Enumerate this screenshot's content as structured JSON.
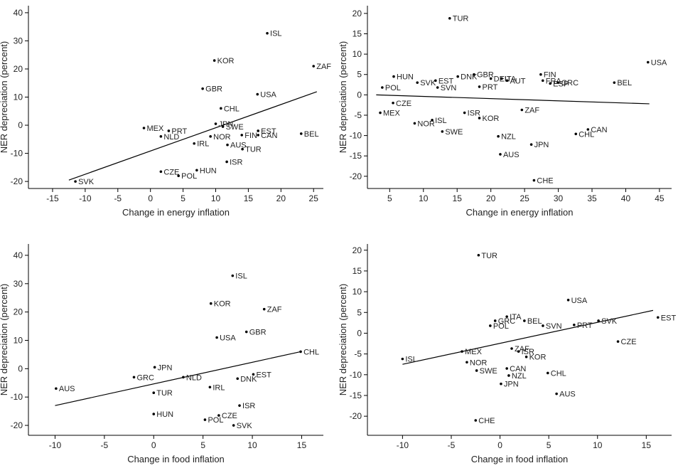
{
  "chart_data": [
    {
      "type": "scatter",
      "xlabel": "Change in energy inflation",
      "ylabel": "NER depreciation (percent)",
      "xlim": [
        -18.7,
        26.5
      ],
      "ylim": [
        -22.5,
        42.5
      ],
      "xticks": [
        -15,
        -10,
        -5,
        0,
        5,
        10,
        15,
        20,
        25
      ],
      "yticks": [
        -20,
        -10,
        0,
        10,
        20,
        30,
        40
      ],
      "labels": [
        "ISL",
        "KOR",
        "ZAF",
        "GBR",
        "USA",
        "CHL",
        "JPN",
        "SWE",
        "MEX",
        "PRT",
        "NLD",
        "NOR",
        "EST",
        "CAN",
        "BEL",
        "FIN",
        "IRL",
        "AUS",
        "TUR",
        "ISR",
        "HUN",
        "CZE",
        "POL",
        "SVK"
      ],
      "x": [
        17.9,
        9.8,
        25,
        8.0,
        16.4,
        10.8,
        10,
        11.1,
        -1.0,
        2.8,
        1.6,
        9.2,
        16.5,
        16.5,
        23.1,
        14,
        6.7,
        11.8,
        14.1,
        11.7,
        7.1,
        1.6,
        4.3,
        -11.5
      ],
      "y": [
        32.7,
        23,
        21,
        13,
        11,
        6,
        0.5,
        -0.5,
        -1,
        -2,
        -4,
        -4,
        -2,
        -3.5,
        -3,
        -3.5,
        -6.5,
        -7,
        -8.5,
        -13,
        -16,
        -16.5,
        -18,
        -20
      ],
      "fit": {
        "x": [
          -12.5,
          25.5
        ],
        "y": [
          -19.5,
          11.9
        ]
      }
    },
    {
      "type": "scatter",
      "xlabel": "Change in energy inflation",
      "ylabel": "NER depreciation (percent)",
      "xlim": [
        1.7,
        46.8
      ],
      "ylim": [
        -23,
        21.9
      ],
      "xticks": [
        5,
        10,
        15,
        20,
        25,
        30,
        35,
        40,
        45
      ],
      "yticks": [
        -20,
        -15,
        -10,
        -5,
        0,
        5,
        10,
        15,
        20
      ],
      "labels": [
        "TUR",
        "USA",
        "HUN",
        "POL",
        "SVK",
        "EST",
        "SVN",
        "DNK",
        "GBR",
        "DEU",
        "PRT",
        "ITA",
        "AUT",
        "FIN",
        "FRA",
        "ESP",
        "GRC",
        "BEL",
        "CZE",
        "MEX",
        "ISL",
        "ISR",
        "KOR",
        "ZAF",
        "NOR",
        "SWE",
        "NZL",
        "CHL",
        "CAN",
        "JPN",
        "AUS",
        "CHE"
      ],
      "x": [
        13.9,
        43.3,
        5.6,
        3.9,
        9.1,
        11.8,
        12.1,
        15.1,
        17.5,
        20,
        18.3,
        21.6,
        22.4,
        27.4,
        27.7,
        28.8,
        30,
        38.3,
        5.5,
        3.6,
        11.3,
        16.1,
        18.3,
        24.6,
        8.7,
        12.8,
        21.1,
        32.6,
        34.4,
        26,
        21.4,
        26.4
      ],
      "y": [
        18.8,
        8,
        4.5,
        1.8,
        3,
        3.5,
        1.8,
        4.5,
        5,
        4,
        2,
        4,
        3.5,
        5,
        3.5,
        2.8,
        3,
        3,
        -2,
        -4.4,
        -6.2,
        -4.4,
        -5.7,
        -3.7,
        -7,
        -9,
        -10.2,
        -9.6,
        -8.5,
        -12.2,
        -14.6,
        -21
      ],
      "fit": {
        "x": [
          3,
          43.5
        ],
        "y": [
          0,
          -2.2
        ]
      }
    },
    {
      "type": "scatter",
      "xlabel": "Change in food inflation",
      "ylabel": "NER depreciation (percent)",
      "xlim": [
        -12.7,
        17.2
      ],
      "ylim": [
        -23.5,
        44
      ],
      "xticks": [
        -10,
        -5,
        0,
        5,
        10,
        15
      ],
      "yticks": [
        -20,
        -10,
        0,
        10,
        20,
        30,
        40
      ],
      "labels": [
        "ISL",
        "KOR",
        "ZAF",
        "GBR",
        "USA",
        "CHL",
        "JPN",
        "GRC",
        "EST",
        "AUS",
        "IRL",
        "TUR",
        "HUN",
        "ISR",
        "CZE",
        "POL",
        "SVK",
        "DNK",
        "NLD"
      ],
      "x": [
        8.0,
        5.8,
        11.2,
        9.4,
        6.4,
        14.9,
        0.1,
        -2,
        10.1,
        -9.9,
        5.7,
        0,
        0,
        8.7,
        6.6,
        5.2,
        8.1,
        8.5,
        3
      ],
      "y": [
        32.8,
        23,
        21,
        13,
        11,
        6,
        0.5,
        -3,
        -2,
        -7,
        -6.5,
        -8.5,
        -16,
        -13,
        -16.5,
        -18,
        -20,
        -3.5,
        -3
      ],
      "fit": {
        "x": [
          -10,
          14.9
        ],
        "y": [
          -13,
          6
        ]
      }
    },
    {
      "type": "scatter",
      "xlabel": "Change in food inflation",
      "ylabel": "NER depreciation (percent)",
      "xlim": [
        -13.6,
        17.6
      ],
      "ylim": [
        -24.6,
        21.5
      ],
      "xticks": [
        -10,
        -5,
        0,
        5,
        10,
        15
      ],
      "yticks": [
        -20,
        -15,
        -10,
        -5,
        0,
        5,
        10,
        15,
        20
      ],
      "labels": [
        "TUR",
        "USA",
        "EST",
        "SVK",
        "PRT",
        "POL",
        "SVN",
        "CZE",
        "GRC",
        "ITA",
        "BEL",
        "MEX",
        "ISL",
        "ZAF",
        "ISR",
        "KOR",
        "NOR",
        "SWE",
        "CAN",
        "NZL",
        "CHL",
        "JPN",
        "AUS",
        "CHE"
      ],
      "x": [
        -2.2,
        7.0,
        16.2,
        10.1,
        7.6,
        -1.0,
        4.4,
        12.1,
        -0.5,
        0.7,
        2.5,
        -3.9,
        -10,
        1.2,
        1.9,
        2.7,
        -3.4,
        -2.4,
        0.7,
        0.9,
        4.9,
        0.1,
        5.8,
        -2.5
      ],
      "y": [
        18.8,
        8,
        3.8,
        3,
        2,
        1.8,
        1.8,
        -2,
        3,
        4,
        3,
        -4.4,
        -6.2,
        -3.7,
        -4.4,
        -5.7,
        -7,
        -9,
        -8.5,
        -10.2,
        -9.6,
        -12.2,
        -14.6,
        -21
      ],
      "fit": {
        "x": [
          -10,
          15.7
        ],
        "y": [
          -7.5,
          5.5
        ]
      }
    }
  ]
}
